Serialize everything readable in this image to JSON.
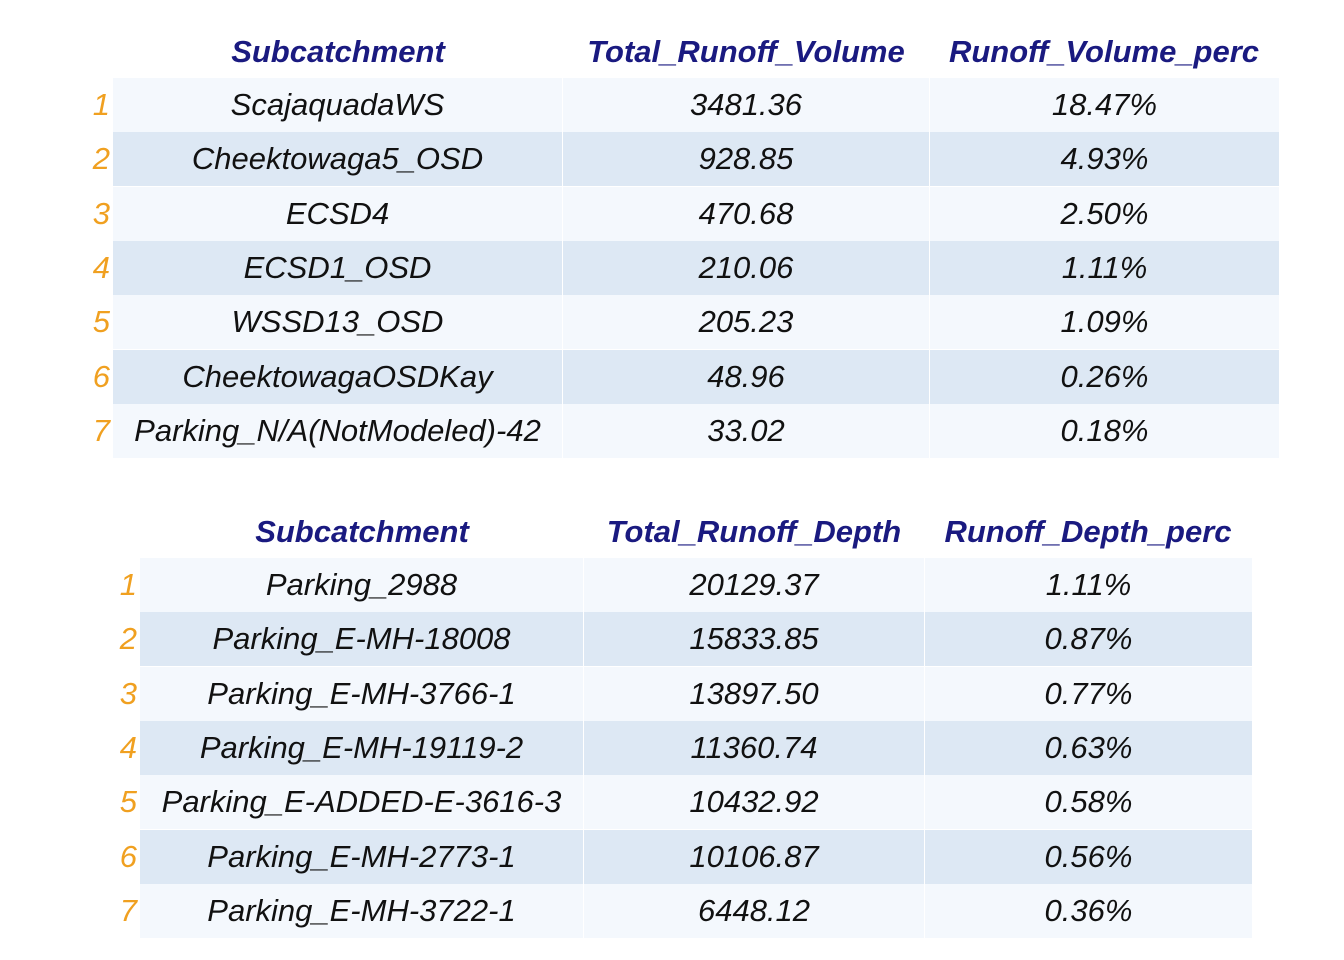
{
  "table1": {
    "headers": [
      "Subcatchment",
      "Total_Runoff_Volume",
      "Runoff_Volume_perc"
    ],
    "rows": [
      {
        "index": "1",
        "name": "ScajaquadaWS",
        "value": "3481.36",
        "perc": "18.47%"
      },
      {
        "index": "2",
        "name": "Cheektowaga5_OSD",
        "value": "928.85",
        "perc": "4.93%"
      },
      {
        "index": "3",
        "name": "ECSD4",
        "value": "470.68",
        "perc": "2.50%"
      },
      {
        "index": "4",
        "name": "ECSD1_OSD",
        "value": "210.06",
        "perc": "1.11%"
      },
      {
        "index": "5",
        "name": "WSSD13_OSD",
        "value": "205.23",
        "perc": "1.09%"
      },
      {
        "index": "6",
        "name": "CheektowagaOSDKay",
        "value": "48.96",
        "perc": "0.26%"
      },
      {
        "index": "7",
        "name": "Parking_N/A(NotModeled)-42",
        "value": "33.02",
        "perc": "0.18%"
      }
    ]
  },
  "table2": {
    "headers": [
      "Subcatchment",
      "Total_Runoff_Depth",
      "Runoff_Depth_perc"
    ],
    "rows": [
      {
        "index": "1",
        "name": "Parking_2988",
        "value": "20129.37",
        "perc": "1.11%"
      },
      {
        "index": "2",
        "name": "Parking_E-MH-18008",
        "value": "15833.85",
        "perc": "0.87%"
      },
      {
        "index": "3",
        "name": "Parking_E-MH-3766-1",
        "value": "13897.50",
        "perc": "0.77%"
      },
      {
        "index": "4",
        "name": "Parking_E-MH-19119-2",
        "value": "11360.74",
        "perc": "0.63%"
      },
      {
        "index": "5",
        "name": "Parking_E-ADDED-E-3616-3",
        "value": "10432.92",
        "perc": "0.58%"
      },
      {
        "index": "6",
        "name": "Parking_E-MH-2773-1",
        "value": "10106.87",
        "perc": "0.56%"
      },
      {
        "index": "7",
        "name": "Parking_E-MH-3722-1",
        "value": "6448.12",
        "perc": "0.36%"
      }
    ]
  }
}
